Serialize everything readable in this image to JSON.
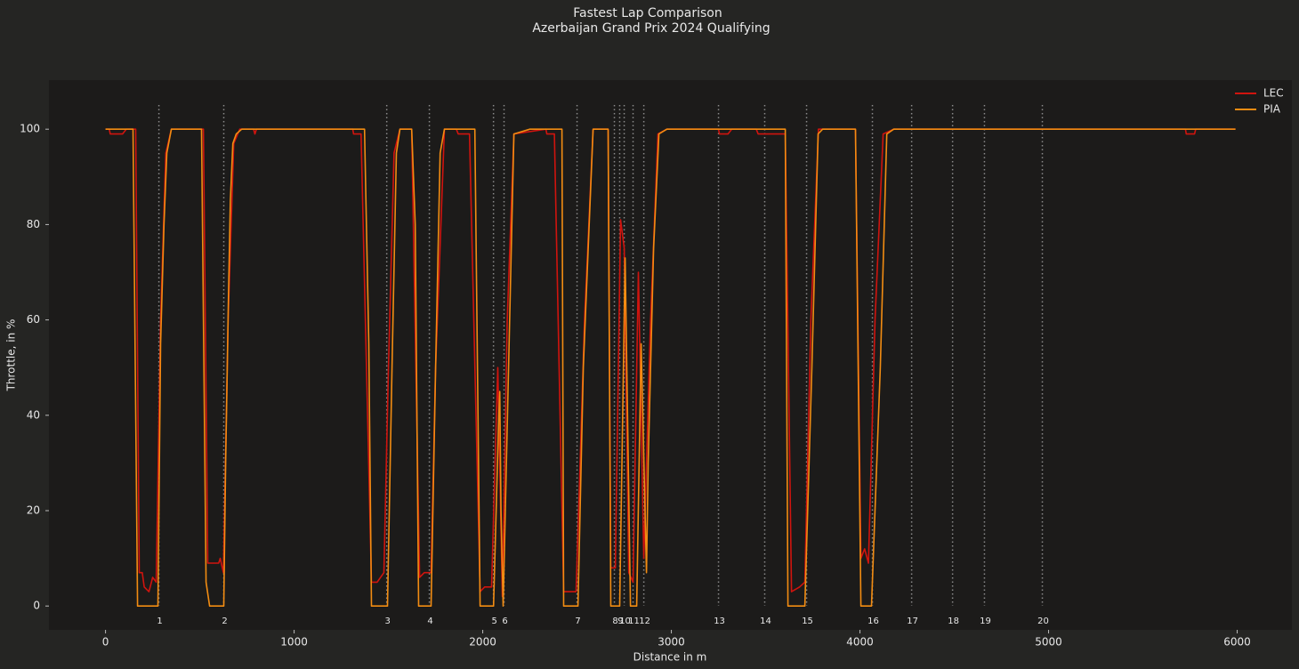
{
  "chart_data": {
    "type": "line",
    "title": "Fastest Lap Comparison",
    "subtitle": "Azerbaijan Grand Prix 2024 Qualifying",
    "x_label": "Distance in m",
    "y_label": "Throttle, in %",
    "xlim": [
      -300,
      6290
    ],
    "xticks": [
      0,
      1000,
      2000,
      3000,
      4000,
      5000,
      6000
    ],
    "ylim": [
      -5,
      110.3
    ],
    "yticks": [
      0,
      20,
      40,
      60,
      80,
      100
    ],
    "legend": "upper right",
    "corners": {
      "numbers": [
        1,
        2,
        3,
        4,
        5,
        6,
        7,
        8,
        9,
        10,
        11,
        12,
        13,
        14,
        15,
        16,
        17,
        18,
        19,
        20
      ],
      "distance": [
        283,
        627,
        1491,
        1717,
        2057,
        2113,
        2500,
        2698,
        2726,
        2750,
        2797,
        2854,
        3250,
        3495,
        3717,
        4066,
        4274,
        4491,
        4660,
        4967
      ]
    },
    "series": [
      {
        "name": "LEC",
        "color": "#d0140e",
        "x": [
          0,
          20,
          25,
          90,
          110,
          160,
          179,
          195,
          205,
          230,
          250,
          269,
          292,
          320,
          349,
          519,
          542,
          600,
          608,
          625,
          650,
          680,
          712,
          785,
          792,
          800,
          1311,
          1315,
          1355,
          1410,
          1440,
          1476,
          1500,
          1530,
          1561,
          1623,
          1665,
          1690,
          1726,
          1750,
          1797,
          1860,
          1870,
          1930,
          1986,
          2010,
          2047,
          2080,
          2104,
          2130,
          2165,
          2335,
          2340,
          2380,
          2429,
          2495,
          2540,
          2585,
          2608,
          2665,
          2679,
          2703,
          2731,
          2750,
          2774,
          2797,
          2825,
          2854,
          2890,
          2929,
          2976,
          3250,
          3255,
          3300,
          3320,
          3450,
          3460,
          3604,
          3637,
          3680,
          3708,
          3740,
          3780,
          3976,
          4005,
          4025,
          4045,
          4080,
          4123,
          4179,
          5726,
          5730,
          5774,
          5780,
          5991
        ],
        "values": [
          100,
          100,
          99,
          99,
          100,
          100,
          7,
          7,
          4,
          3,
          6,
          5,
          60,
          95,
          100,
          100,
          9,
          9,
          10,
          7,
          60,
          97,
          100,
          100,
          99,
          100,
          100,
          99,
          99,
          5,
          5,
          7,
          50,
          95,
          100,
          100,
          6,
          7,
          7,
          50,
          100,
          100,
          99,
          99,
          3,
          4,
          4,
          50,
          2,
          60,
          99,
          100,
          99,
          99,
          3,
          3,
          60,
          100,
          100,
          100,
          8,
          8,
          81,
          75,
          7,
          5,
          70,
          10,
          60,
          99,
          100,
          100,
          99,
          99,
          100,
          100,
          99,
          99,
          3,
          4,
          5,
          60,
          100,
          100,
          10,
          12,
          9,
          60,
          99,
          100,
          100,
          99,
          99,
          100,
          100
        ]
      },
      {
        "name": "PIA",
        "color": "#f28c12",
        "x": [
          0,
          146,
          170,
          278,
          292,
          310,
          325,
          349,
          509,
          533,
          552,
          627,
          637,
          651,
          662,
          675,
          693,
          722,
          1373,
          1396,
          1410,
          1495,
          1519,
          1542,
          1561,
          1594,
          1623,
          1642,
          1660,
          1726,
          1750,
          1774,
          1797,
          1958,
          1986,
          2057,
          2085,
          2090,
          2097,
          2108,
          2137,
          2165,
          2250,
          2420,
          2429,
          2505,
          2533,
          2585,
          2608,
          2665,
          2679,
          2726,
          2755,
          2783,
          2816,
          2840,
          2868,
          2877,
          2906,
          2934,
          2976,
          3604,
          3618,
          3708,
          3745,
          3778,
          3802,
          3976,
          4005,
          4061,
          4108,
          4142,
          4179,
          5991
        ],
        "values": [
          100,
          100,
          0,
          0,
          55,
          80,
          95,
          100,
          100,
          5,
          0,
          0,
          30,
          63,
          85,
          97,
          99,
          100,
          100,
          55,
          0,
          0,
          50,
          95,
          100,
          100,
          100,
          80,
          0,
          0,
          50,
          95,
          100,
          100,
          0,
          0,
          40,
          45,
          20,
          0,
          50,
          99,
          100,
          100,
          0,
          0,
          50,
          100,
          100,
          100,
          0,
          0,
          73,
          0,
          0,
          55,
          7,
          30,
          75,
          99,
          100,
          100,
          0,
          0,
          50,
          99,
          100,
          100,
          0,
          0,
          50,
          99,
          100,
          100
        ]
      }
    ]
  }
}
